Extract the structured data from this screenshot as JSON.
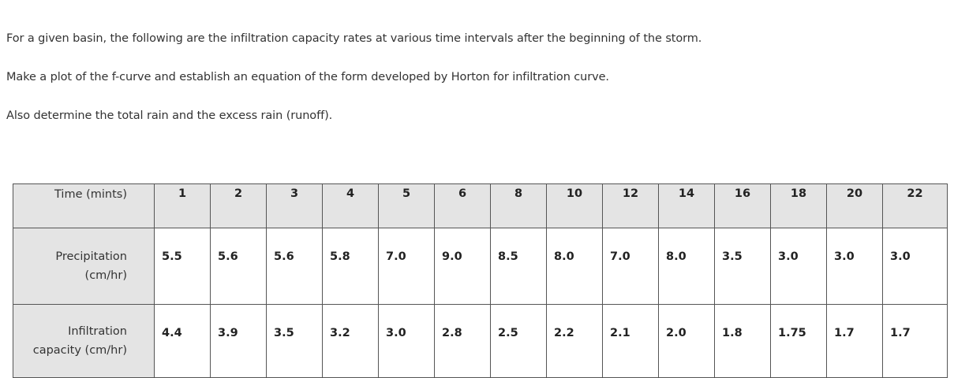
{
  "paragraphs": [
    "For a given basin, the following are the infiltration capacity rates at various time intervals after the beginning of the storm.",
    "Make a plot of the f-curve and establish an equation of the form developed by Horton for infiltration curve.",
    "Also determine the total rain and the excess rain (runoff)."
  ],
  "table": {
    "rows": [
      {
        "header": [
          "Time (mints)"
        ],
        "values": [
          "1",
          "2",
          "3",
          "4",
          "5",
          "6",
          "8",
          "10",
          "12",
          "14",
          "16",
          "18",
          "20",
          "22"
        ]
      },
      {
        "header": [
          "Precipitation",
          "(cm/hr)"
        ],
        "values": [
          "5.5",
          "5.6",
          "5.6",
          "5.8",
          "7.0",
          "9.0",
          "8.5",
          "8.0",
          "7.0",
          "8.0",
          "3.5",
          "3.0",
          "3.0",
          "3.0"
        ]
      },
      {
        "header": [
          "Infiltration",
          "capacity (cm/hr)"
        ],
        "values": [
          "4.4",
          "3.9",
          "3.5",
          "3.2",
          "3.0",
          "2.8",
          "2.5",
          "2.2",
          "2.1",
          "2.0",
          "1.8",
          "1.75",
          "1.7",
          "1.7"
        ]
      }
    ]
  },
  "colors": {
    "header_bg": "#e4e4e4",
    "border": "#555555",
    "text": "#333333"
  }
}
